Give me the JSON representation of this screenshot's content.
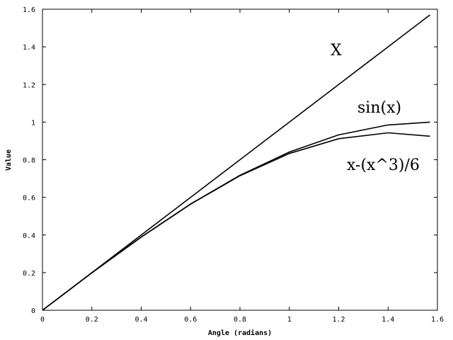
{
  "chart_data": {
    "type": "line",
    "title": "",
    "xlabel": "Angle (radians)",
    "ylabel": "Value",
    "xlim": [
      0,
      1.6
    ],
    "ylim": [
      0,
      1.6
    ],
    "x_ticks": [
      "0",
      "0.2",
      "0.4",
      "0.6",
      "0.8",
      "1",
      "1.2",
      "1.4",
      "1.6"
    ],
    "y_ticks": [
      "0",
      "0.2",
      "0.4",
      "0.6",
      "0.8",
      "1",
      "1.2",
      "1.4",
      "1.6"
    ],
    "grid": false,
    "legend": "none",
    "series": [
      {
        "name": "X",
        "x": [
          0,
          0.2,
          0.4,
          0.6,
          0.8,
          1.0,
          1.2,
          1.4,
          1.57
        ],
        "y": [
          0,
          0.2,
          0.4,
          0.6,
          0.8,
          1.0,
          1.2,
          1.4,
          1.57
        ]
      },
      {
        "name": "sin(x)",
        "x": [
          0,
          0.2,
          0.4,
          0.6,
          0.8,
          1.0,
          1.2,
          1.4,
          1.57
        ],
        "y": [
          0,
          0.199,
          0.389,
          0.565,
          0.717,
          0.841,
          0.932,
          0.985,
          1.0
        ]
      },
      {
        "name": "x-(x^3)/6",
        "x": [
          0,
          0.2,
          0.4,
          0.6,
          0.8,
          1.0,
          1.2,
          1.4,
          1.57
        ],
        "y": [
          0,
          0.199,
          0.389,
          0.564,
          0.715,
          0.833,
          0.912,
          0.943,
          0.925
        ]
      }
    ],
    "line_color": "#000000"
  }
}
